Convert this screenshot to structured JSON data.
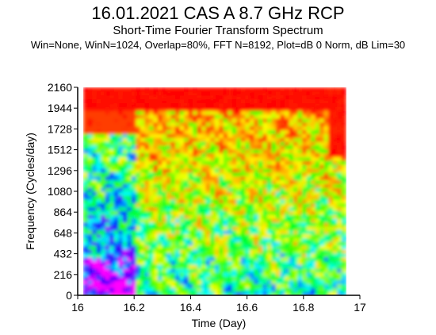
{
  "chart_data": {
    "type": "heatmap",
    "title": "16.01.2021 CAS A 8.7 GHz RCP",
    "subtitle": "Short-Time Fourier Transform Spectrum",
    "parameters": "Win=None, WinN=1024, Overlap=80%, FFT N=8192, Plot=dB 0 Norm, dB Lim=30",
    "xlabel": "Time (Day)",
    "ylabel": "Frequency (Cycles/day)",
    "xlim": [
      16,
      17
    ],
    "ylim": [
      0,
      2160
    ],
    "xticks": [
      "16",
      "16.2",
      "16.4",
      "16.6",
      "16.8",
      "17"
    ],
    "yticks": [
      "0",
      "216",
      "432",
      "648",
      "864",
      "1080",
      "1296",
      "1512",
      "1728",
      "1944",
      "2160"
    ],
    "data_extent_x": [
      16.02,
      16.95
    ],
    "colormap": [
      "#ff00ff",
      "#0000ff",
      "#00ffff",
      "#00ff00",
      "#ffff00",
      "#ff8000",
      "#ff0000"
    ],
    "color_scale": "dB, 0 = normalized max, limit 30 dB",
    "grid": false
  }
}
